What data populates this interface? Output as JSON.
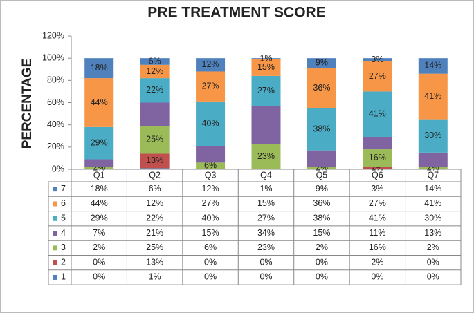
{
  "chart_data": {
    "type": "stacked_bar_100",
    "title": "PRE TREATMENT SCORE",
    "y_label": "PERCENTAGE",
    "categories": [
      "Q1",
      "Q2",
      "Q3",
      "Q4",
      "Q5",
      "Q6",
      "Q7"
    ],
    "ylim": [
      0,
      120
    ],
    "yticks": [
      {
        "value": 0,
        "label": "0%"
      },
      {
        "value": 20,
        "label": "20%"
      },
      {
        "value": 40,
        "label": "40%"
      },
      {
        "value": 60,
        "label": "60%"
      },
      {
        "value": 80,
        "label": "80%"
      },
      {
        "value": 100,
        "label": "100%"
      },
      {
        "value": 120,
        "label": "120%"
      }
    ],
    "data_table": true,
    "series": [
      {
        "name": "1",
        "color": "#4f81bd",
        "data_labels": false,
        "values": [
          0,
          1,
          0,
          0,
          0,
          0,
          0
        ],
        "value_labels": [
          "0%",
          "1%",
          "0%",
          "0%",
          "0%",
          "0%",
          "0%"
        ]
      },
      {
        "name": "2",
        "color": "#c0504d",
        "data_labels": true,
        "values": [
          0,
          13,
          0,
          0,
          0,
          2,
          0
        ],
        "value_labels": [
          "0%",
          "13%",
          "0%",
          "0%",
          "0%",
          "2%",
          "0%"
        ]
      },
      {
        "name": "3",
        "color": "#9bbb59",
        "data_labels": true,
        "values": [
          2,
          25,
          6,
          23,
          2,
          16,
          2
        ],
        "value_labels": [
          "2%",
          "25%",
          "6%",
          "23%",
          "2%",
          "16%",
          "2%"
        ]
      },
      {
        "name": "4",
        "color": "#8064a2",
        "data_labels": false,
        "values": [
          7,
          21,
          15,
          34,
          15,
          11,
          13
        ],
        "value_labels": [
          "7%",
          "21%",
          "15%",
          "34%",
          "15%",
          "11%",
          "13%"
        ]
      },
      {
        "name": "5",
        "color": "#4bacc6",
        "data_labels": true,
        "values": [
          29,
          22,
          40,
          27,
          38,
          41,
          30
        ],
        "value_labels": [
          "29%",
          "22%",
          "40%",
          "27%",
          "38%",
          "41%",
          "30%"
        ]
      },
      {
        "name": "6",
        "color": "#f79646",
        "data_labels": true,
        "values": [
          44,
          12,
          27,
          15,
          36,
          27,
          41
        ],
        "value_labels": [
          "44%",
          "12%",
          "27%",
          "15%",
          "36%",
          "27%",
          "41%"
        ]
      },
      {
        "name": "7",
        "color": "#4f81bd",
        "data_labels": true,
        "values": [
          18,
          6,
          12,
          1,
          9,
          3,
          14
        ],
        "value_labels": [
          "18%",
          "6%",
          "12%",
          "1%",
          "9%",
          "3%",
          "14%"
        ]
      }
    ]
  }
}
